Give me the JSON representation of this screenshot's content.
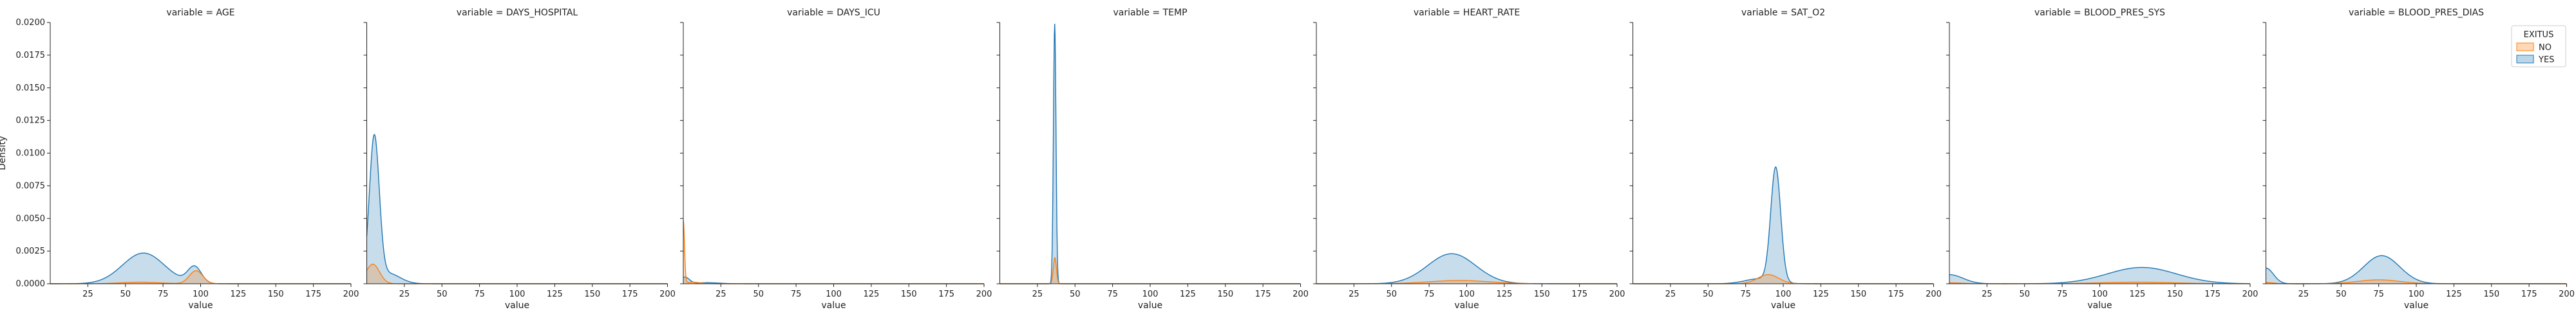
{
  "figure": {
    "ylabel": "Density",
    "xlabel": "value",
    "facet_titles": [
      "variable = AGE",
      "variable = DAYS_HOSPITAL",
      "variable = DAYS_ICU",
      "variable = TEMP",
      "variable = HEART_RATE",
      "variable = SAT_O2",
      "variable = BLOOD_PRES_SYS",
      "variable = BLOOD_PRES_DIAS"
    ],
    "legend": {
      "title": "EXITUS",
      "entries": [
        {
          "label": "NO",
          "color": "#ff7f0e"
        },
        {
          "label": "YES",
          "color": "#1f77b4"
        }
      ]
    }
  },
  "chart_data": {
    "type": "area",
    "subtype": "kde-density-facets",
    "xlabel": "value",
    "ylabel": "Density",
    "xlim": [
      0,
      200
    ],
    "ylim": [
      0,
      0.02
    ],
    "x_ticks": [
      25,
      50,
      75,
      100,
      125,
      150,
      175,
      200
    ],
    "y_ticks": [
      0.0,
      0.0025,
      0.005,
      0.0075,
      0.01,
      0.0125,
      0.015,
      0.0175,
      0.02
    ],
    "y_tick_labels": [
      "0.0000",
      "0.0025",
      "0.0050",
      "0.0075",
      "0.0100",
      "0.0125",
      "0.0150",
      "0.0175",
      "0.0200"
    ],
    "legend_position": "top-right",
    "grid": false,
    "hue": "EXITUS",
    "series_colors": {
      "NO": "#ff7f0e",
      "YES": "#1f77b4"
    },
    "panels": [
      {
        "title": "variable = AGE",
        "series": [
          {
            "name": "YES",
            "components": [
              {
                "mu": 62,
                "sigma": 14,
                "peak": 0.00235
              },
              {
                "mu": 96,
                "sigma": 4.5,
                "peak": 0.00125
              }
            ]
          },
          {
            "name": "NO",
            "components": [
              {
                "mu": 60,
                "sigma": 13,
                "peak": 0.00012
              },
              {
                "mu": 97,
                "sigma": 4.5,
                "peak": 0.001
              }
            ]
          }
        ]
      },
      {
        "title": "variable = DAYS_HOSPITAL",
        "series": [
          {
            "name": "YES",
            "components": [
              {
                "mu": 5,
                "sigma": 3.3,
                "peak": 0.011
              },
              {
                "mu": 14,
                "sigma": 8,
                "peak": 0.0008
              }
            ]
          },
          {
            "name": "NO",
            "components": [
              {
                "mu": 4,
                "sigma": 4.5,
                "peak": 0.0015
              }
            ]
          }
        ]
      },
      {
        "title": "variable = DAYS_ICU",
        "series": [
          {
            "name": "YES",
            "components": [
              {
                "mu": 1,
                "sigma": 3,
                "peak": 0.0005
              },
              {
                "mu": 16,
                "sigma": 8,
                "peak": 8e-05
              }
            ]
          },
          {
            "name": "NO",
            "components": [
              {
                "mu": 0,
                "sigma": 0.8,
                "peak": 0.0048
              },
              {
                "mu": 6,
                "sigma": 5,
                "peak": 0.00012
              }
            ]
          }
        ]
      },
      {
        "title": "variable = TEMP",
        "series": [
          {
            "name": "YES",
            "components": [
              {
                "mu": 36.5,
                "sigma": 0.85,
                "peak": 0.0199
              }
            ]
          },
          {
            "name": "NO",
            "components": [
              {
                "mu": 36.6,
                "sigma": 1.0,
                "peak": 0.002
              }
            ]
          }
        ]
      },
      {
        "title": "variable = HEART_RATE",
        "series": [
          {
            "name": "YES",
            "components": [
              {
                "mu": 90,
                "sigma": 16,
                "peak": 0.0023
              }
            ]
          },
          {
            "name": "NO",
            "components": [
              {
                "mu": 95,
                "sigma": 20,
                "peak": 0.00025
              }
            ]
          }
        ]
      },
      {
        "title": "variable = SAT_O2",
        "series": [
          {
            "name": "YES",
            "components": [
              {
                "mu": 95,
                "sigma": 3.3,
                "peak": 0.0087
              },
              {
                "mu": 85,
                "sigma": 10,
                "peak": 0.0004
              }
            ]
          },
          {
            "name": "NO",
            "components": [
              {
                "mu": 90,
                "sigma": 7,
                "peak": 0.0007
              }
            ]
          }
        ]
      },
      {
        "title": "variable = BLOOD_PRES_SYS",
        "series": [
          {
            "name": "YES",
            "components": [
              {
                "mu": 0,
                "sigma": 9,
                "peak": 0.0007
              },
              {
                "mu": 128,
                "sigma": 23,
                "peak": 0.00125
              }
            ]
          },
          {
            "name": "NO",
            "components": [
              {
                "mu": 0,
                "sigma": 9,
                "peak": 7e-05
              },
              {
                "mu": 125,
                "sigma": 25,
                "peak": 0.00012
              }
            ]
          }
        ]
      },
      {
        "title": "variable = BLOOD_PRES_DIAS",
        "series": [
          {
            "name": "YES",
            "components": [
              {
                "mu": 0,
                "sigma": 5,
                "peak": 0.0012
              },
              {
                "mu": 77,
                "sigma": 12,
                "peak": 0.00215
              }
            ]
          },
          {
            "name": "NO",
            "components": [
              {
                "mu": 0,
                "sigma": 5,
                "peak": 0.0001
              },
              {
                "mu": 75,
                "sigma": 14,
                "peak": 0.0003
              }
            ]
          }
        ]
      }
    ]
  }
}
